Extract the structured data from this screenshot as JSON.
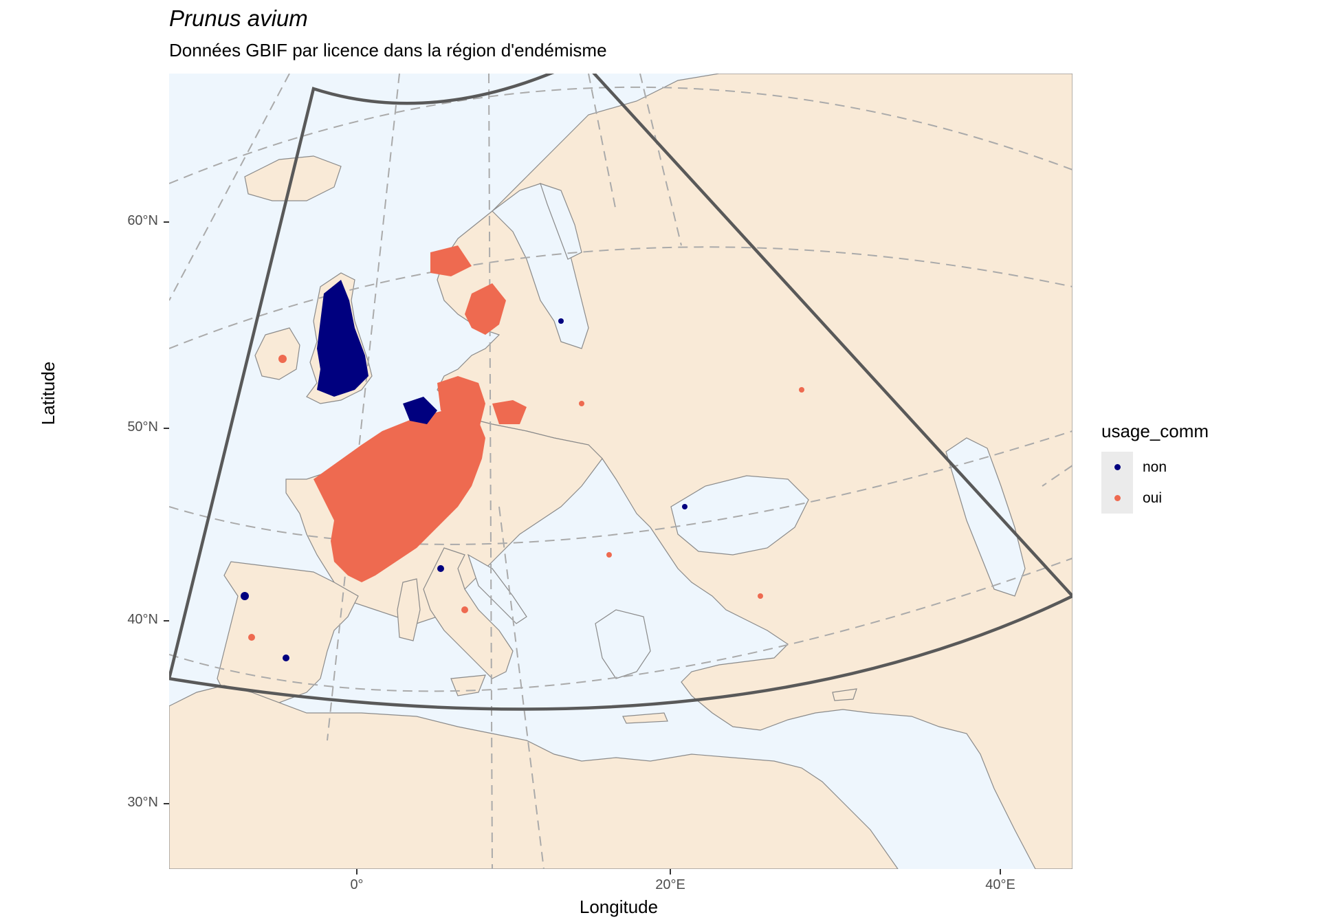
{
  "title": "Prunus avium",
  "subtitle": "Données GBIF par licence dans la région d'endémisme",
  "xlabel": "Longitude",
  "ylabel": "Latitude",
  "lat_ticks": [
    "60°N",
    "50°N",
    "40°N",
    "30°N"
  ],
  "lon_ticks": [
    "0°",
    "20°E",
    "40°E"
  ],
  "legend": {
    "title": "usage_comm",
    "items": [
      {
        "label": "non",
        "color": "#00007f"
      },
      {
        "label": "oui",
        "color": "#ee6a50"
      }
    ]
  },
  "colors": {
    "sea": "#eef6fd",
    "land": "#f9ead7",
    "border": "#8a8a8a",
    "graticule": "#aaaaaa",
    "region_outline": "#595959"
  }
}
